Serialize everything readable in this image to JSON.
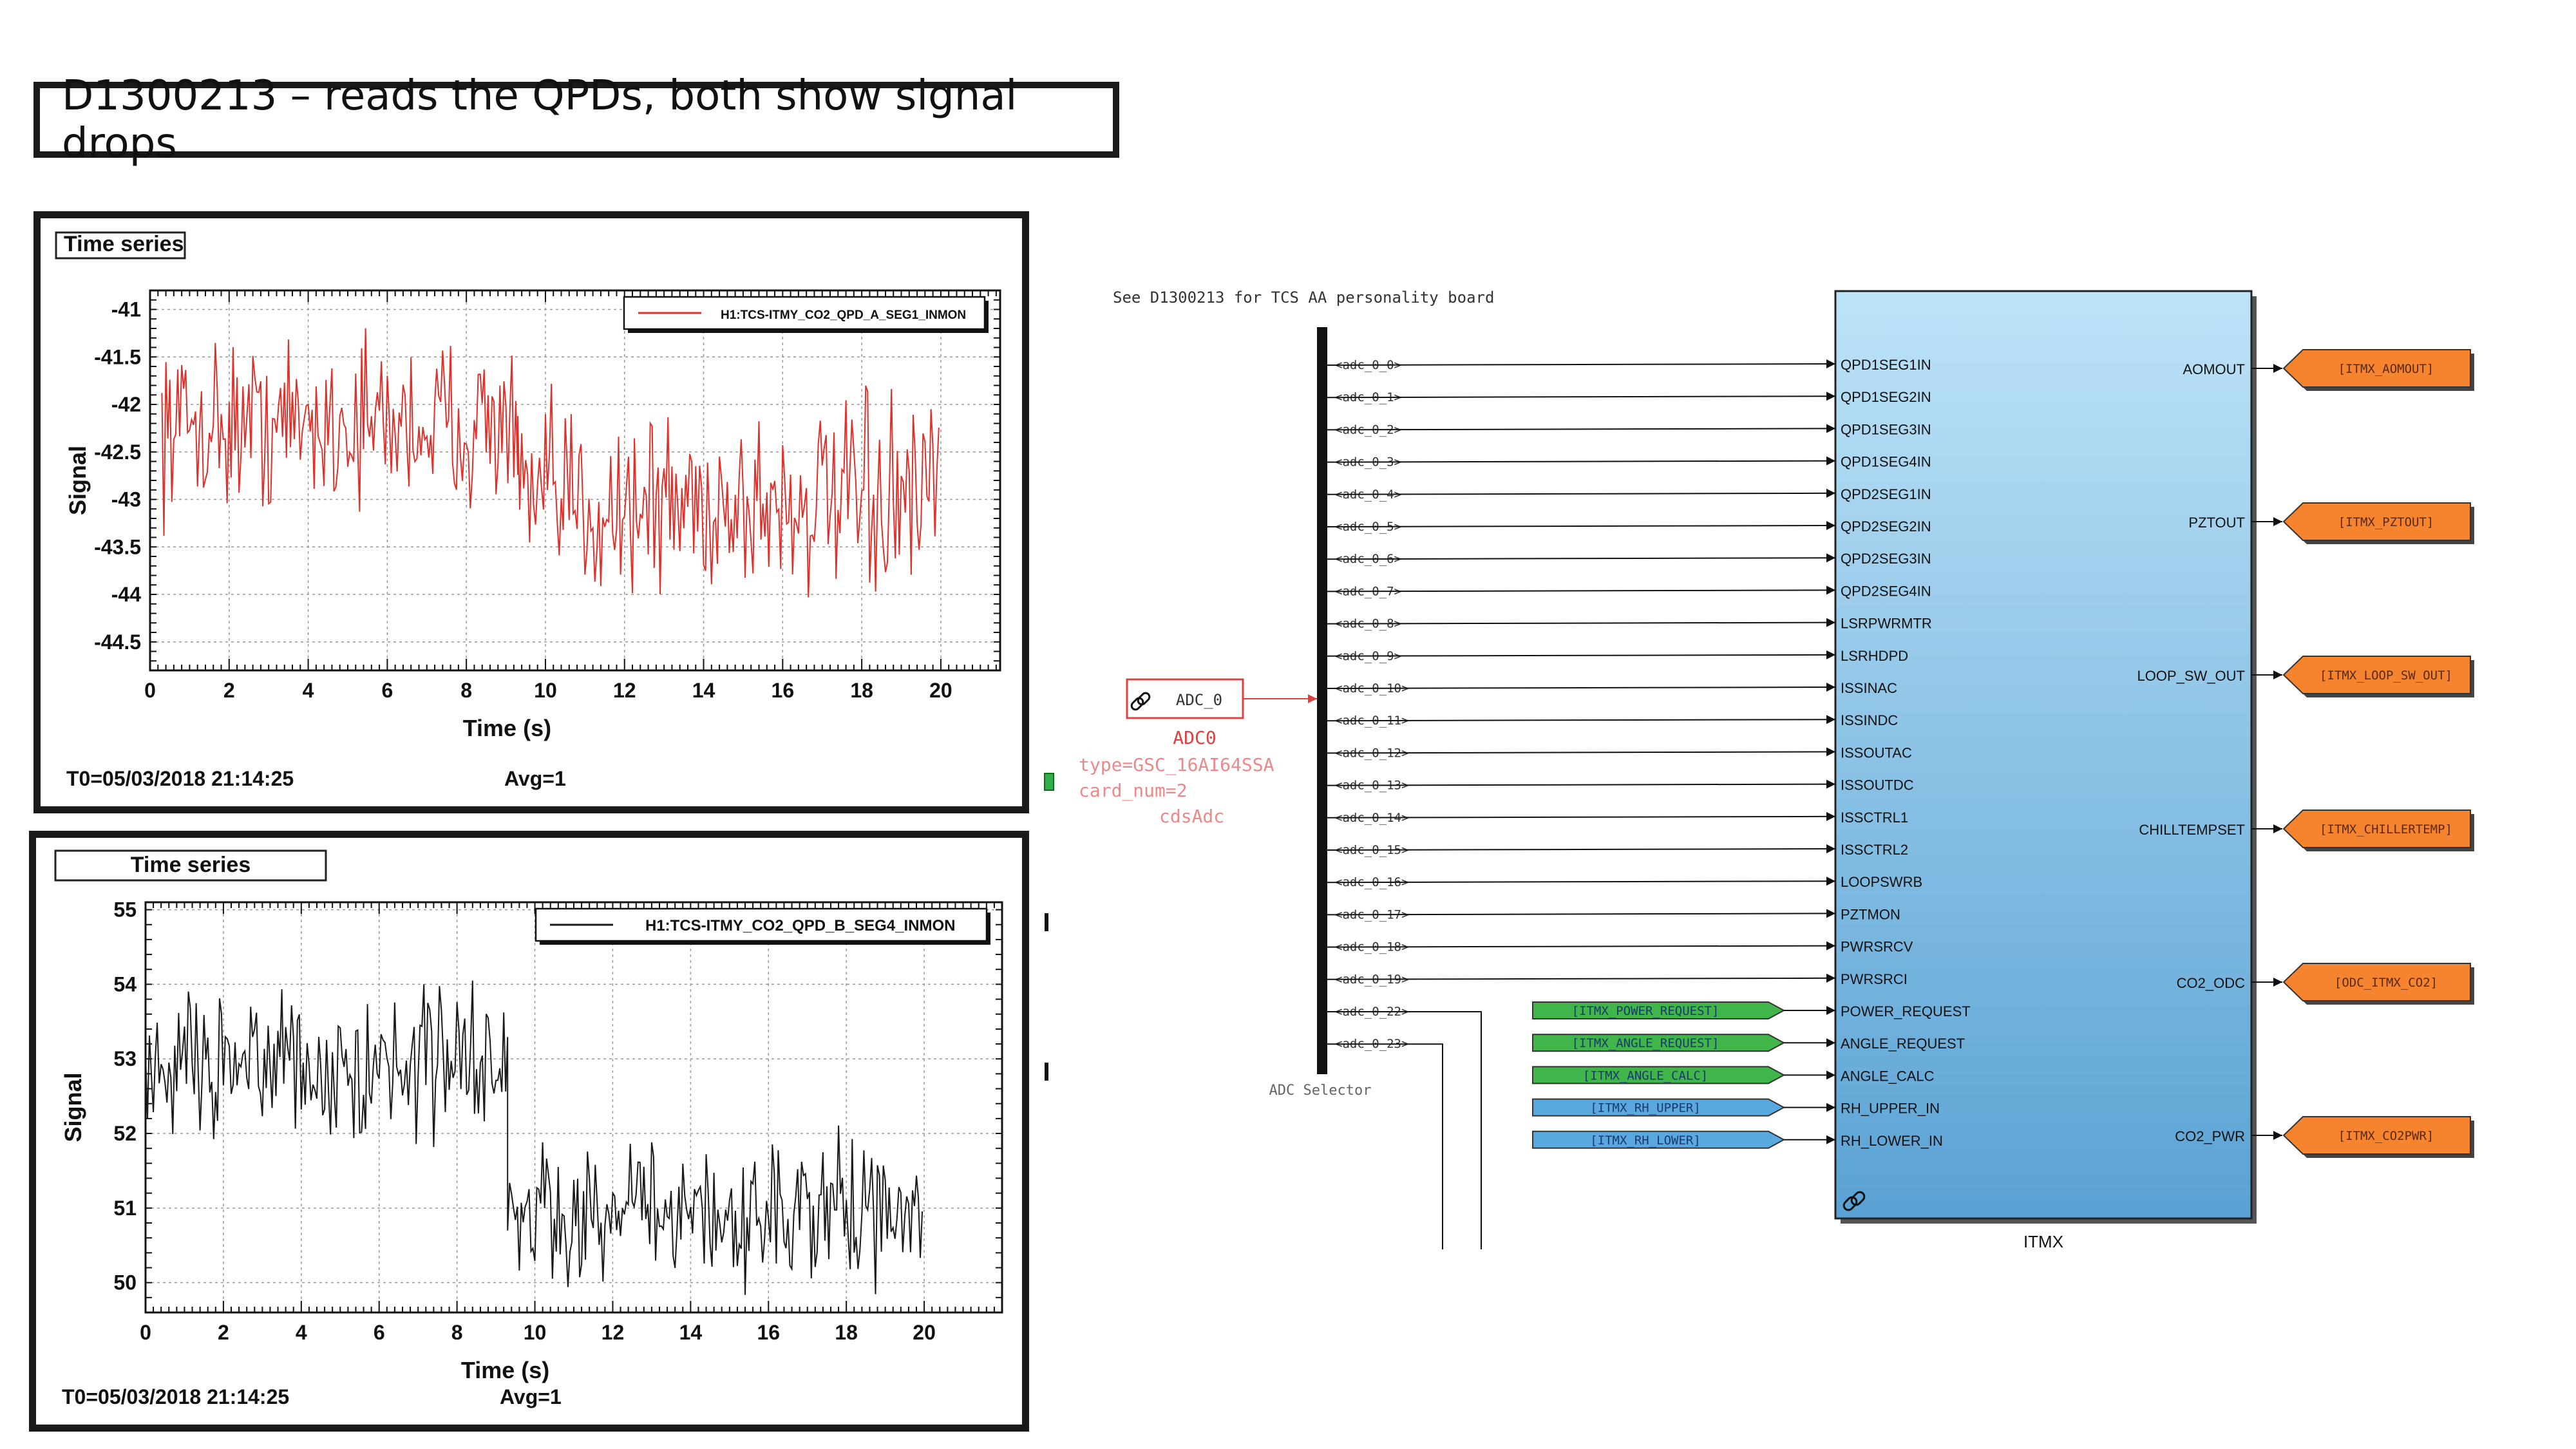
{
  "slide": {
    "title": "D1300213 – reads the QPDs, both show signal drops"
  },
  "chart_data": [
    {
      "type": "line",
      "title": "Time series",
      "legend": "H1:TCS-ITMY_CO2_QPD_A_SEG1_INMON",
      "legend_position": "top-right",
      "xlabel": "Time (s)",
      "ylabel": "Signal",
      "xlim": [
        0,
        21.5
      ],
      "ylim": [
        -44.8,
        -40.8
      ],
      "xticks": [
        "0",
        "2",
        "4",
        "6",
        "8",
        "10",
        "12",
        "14",
        "16",
        "18",
        "20"
      ],
      "yticks": [
        "-41",
        "-41.5",
        "-42",
        "-42.5",
        "-43",
        "-43.5",
        "-44",
        "-44.5"
      ],
      "color": "#e0302a",
      "grid": true,
      "footer_left": "T0=05/03/2018 21:14:25",
      "footer_right": "Avg=1",
      "segments": [
        {
          "x_start": 0.3,
          "x_end": 9.3,
          "mean": -42.2,
          "spread": 0.65
        },
        {
          "x_start": 9.3,
          "x_end": 20.0,
          "mean": -43.05,
          "spread": 0.75
        }
      ]
    },
    {
      "type": "line",
      "title": "Time series",
      "legend": "H1:TCS-ITMY_CO2_QPD_B_SEG4_INMON",
      "legend_position": "top-right",
      "xlabel": "Time (s)",
      "ylabel": "Signal",
      "xlim": [
        0,
        22
      ],
      "ylim": [
        49.6,
        55.1
      ],
      "xticks": [
        "0",
        "2",
        "4",
        "6",
        "8",
        "10",
        "12",
        "14",
        "16",
        "18",
        "20"
      ],
      "yticks": [
        "50",
        "51",
        "52",
        "53",
        "54",
        "55"
      ],
      "color": "#1a1a1a",
      "grid": true,
      "footer_left": "T0=05/03/2018 21:14:25",
      "footer_right": "Avg=1",
      "segments": [
        {
          "x_start": 0.0,
          "x_end": 9.3,
          "mean": 53.0,
          "spread": 0.75
        },
        {
          "x_start": 9.3,
          "x_end": 20.0,
          "mean": 50.9,
          "spread": 0.7
        }
      ]
    }
  ],
  "diagram": {
    "note": "See D1300213 for TCS AA personality board",
    "adc_block": {
      "label": "ADC_0",
      "name": "ADC0",
      "type": "type=GSC_16AI64SSA",
      "card": "card_num=2",
      "lib": "cdsAdc"
    },
    "selector_label": "ADC Selector",
    "adc_channels": [
      "<adc_0_0>",
      "<adc_0_1>",
      "<adc_0_2>",
      "<adc_0_3>",
      "<adc_0_4>",
      "<adc_0_5>",
      "<adc_0_6>",
      "<adc_0_7>",
      "<adc_0_8>",
      "<adc_0_9>",
      "<adc_0_10>",
      "<adc_0_11>",
      "<adc_0_12>",
      "<adc_0_13>",
      "<adc_0_14>",
      "<adc_0_15>",
      "<adc_0_16>",
      "<adc_0_17>",
      "<adc_0_18>",
      "<adc_0_19>",
      "<adc_0_22>",
      "<adc_0_23>"
    ],
    "block_name": "ITMX",
    "inputs": [
      "QPD1SEG1IN",
      "QPD1SEG2IN",
      "QPD1SEG3IN",
      "QPD1SEG4IN",
      "QPD2SEG1IN",
      "QPD2SEG2IN",
      "QPD2SEG3IN",
      "QPD2SEG4IN",
      "LSRPWRMTR",
      "LSRHDPD",
      "ISSINAC",
      "ISSINDC",
      "ISSOUTAC",
      "ISSOUTDC",
      "ISSCTRL1",
      "ISSCTRL2",
      "LOOPSWRB",
      "PZTMON",
      "PWRSRCV",
      "PWRSRCI",
      "POWER_REQUEST",
      "ANGLE_REQUEST",
      "ANGLE_CALC",
      "RH_UPPER_IN",
      "RH_LOWER_IN"
    ],
    "from_tags": [
      {
        "label": "[ITMX_POWER_REQUEST]",
        "color": "#3fb54a"
      },
      {
        "label": "[ITMX_ANGLE_REQUEST]",
        "color": "#3fb54a"
      },
      {
        "label": "[ITMX_ANGLE_CALC]",
        "color": "#3fb54a"
      },
      {
        "label": "[ITMX_RH_UPPER]",
        "color": "#5aa8e0"
      },
      {
        "label": "[ITMX_RH_LOWER]",
        "color": "#5aa8e0"
      }
    ],
    "outputs": [
      {
        "port": "AOMOUT",
        "tag": "[ITMX_AOMOUT]"
      },
      {
        "port": "PZTOUT",
        "tag": "[ITMX_PZTOUT]"
      },
      {
        "port": "LOOP_SW_OUT",
        "tag": "[ITMX_LOOP_SW_OUT]"
      },
      {
        "port": "CHILLTEMPSET",
        "tag": "[ITMX_CHILLERTEMP]"
      },
      {
        "port": "CO2_ODC",
        "tag": "[ODC_ITMX_CO2]"
      },
      {
        "port": "CO2_PWR",
        "tag": "[ITMX_CO2PWR]"
      }
    ],
    "colors": {
      "block_top": "#bde3f7",
      "block_bottom": "#5aa2d4",
      "goto_tag": "#f6832e",
      "adc_red": "#e04040"
    }
  }
}
